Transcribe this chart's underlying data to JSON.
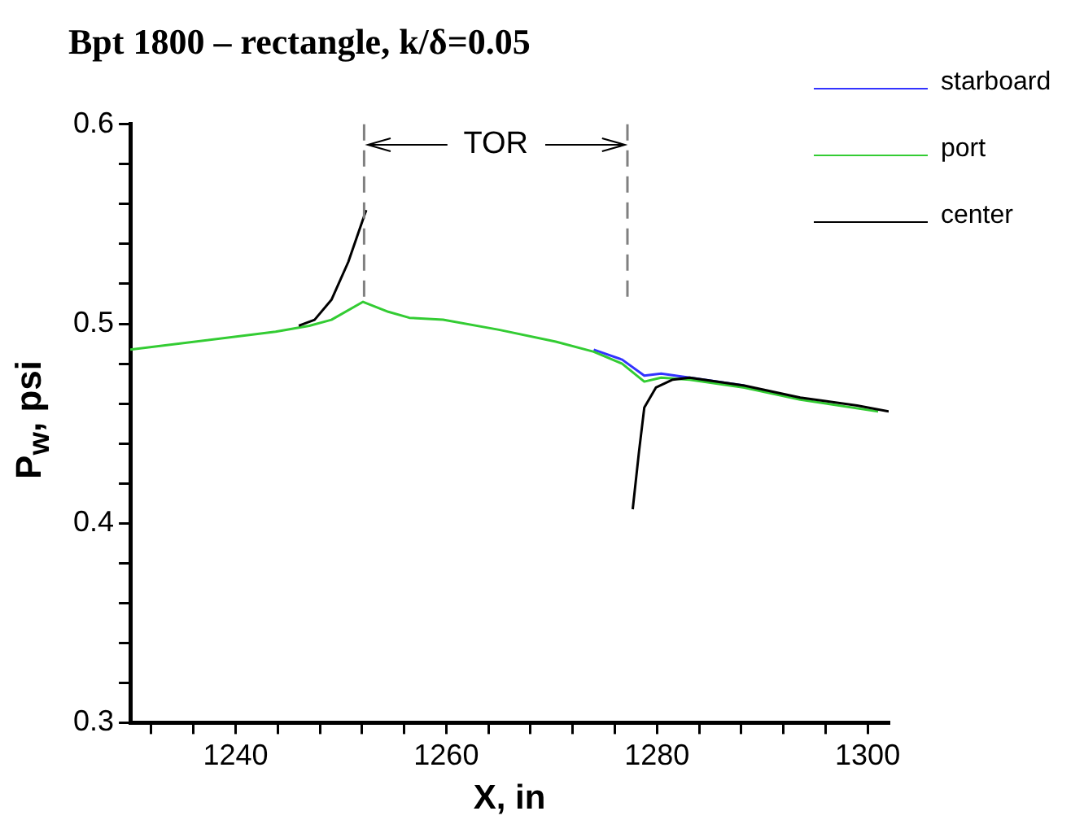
{
  "chart_data": {
    "type": "line",
    "title": "Bpt 1800 – rectangle, k/δ=0.05",
    "xlabel": "X, in",
    "ylabel": "P$_{w}$, psi",
    "xlim": [
      1230,
      1302
    ],
    "xticks": [
      {
        "value": 1232,
        "label": null
      },
      {
        "value": 1236,
        "label": null
      },
      1240,
      {
        "value": 1244,
        "label": null
      },
      {
        "value": 1248,
        "label": null
      },
      {
        "value": 1252,
        "label": null
      },
      {
        "value": 1256,
        "label": null
      },
      1260,
      {
        "value": 1264,
        "label": null
      },
      {
        "value": 1268,
        "label": null
      },
      {
        "value": 1272,
        "label": null
      },
      {
        "value": 1276,
        "label": null
      },
      1280,
      {
        "value": 1284,
        "label": null
      },
      {
        "value": 1288,
        "label": null
      },
      {
        "value": 1292,
        "label": null
      },
      {
        "value": 1296,
        "label": null
      },
      1300
    ],
    "ylim": [
      0.3,
      0.6
    ],
    "yticks": [
      0.3,
      {
        "value": 0.32,
        "label": null
      },
      {
        "value": 0.34,
        "label": null
      },
      {
        "value": 0.36,
        "label": null
      },
      {
        "value": 0.38,
        "label": null
      },
      0.4,
      {
        "value": 0.42,
        "label": null
      },
      {
        "value": 0.44,
        "label": null
      },
      {
        "value": 0.46,
        "label": null
      },
      {
        "value": 0.48,
        "label": null
      },
      0.5,
      {
        "value": 0.52,
        "label": null
      },
      {
        "value": 0.54,
        "label": null
      },
      {
        "value": 0.56,
        "label": null
      },
      {
        "value": 0.58,
        "label": null
      },
      0.6
    ],
    "legend": "top right",
    "series": [
      {
        "name": "starboard",
        "color": "#3333ff",
        "x": [
          1274,
          1276.7,
          1278.8,
          1280.4,
          1283.1,
          1288.3
        ],
        "values": [
          0.487,
          0.482,
          0.474,
          0.475,
          0.473,
          0.469
        ]
      },
      {
        "name": "port",
        "color": "#33cc33",
        "x": [
          1230,
          1243.8,
          1247,
          1249.1,
          1252.1,
          1254.5,
          1256.5,
          1259.7,
          1265,
          1270.4,
          1274,
          1276.7,
          1278.8,
          1280.4,
          1283.1,
          1288.3,
          1293.6,
          1301
        ],
        "values": [
          0.487,
          0.496,
          0.499,
          0.502,
          0.511,
          0.506,
          0.503,
          0.502,
          0.497,
          0.491,
          0.486,
          0.48,
          0.471,
          0.473,
          0.472,
          0.468,
          0.462,
          0.456
        ]
      },
      {
        "name": "center",
        "color": "#000000",
        "x": [
          1246,
          1247.5,
          1249.1,
          1250.7,
          1252.4,
          1265,
          1277.7,
          1278.3,
          1278.8,
          1279.9,
          1281.5,
          1283.1,
          1288.3,
          1293.6,
          1299,
          1302
        ],
        "values": [
          0.499,
          0.502,
          0.512,
          0.531,
          0.557,
          null,
          0.407,
          0.436,
          0.458,
          0.468,
          0.472,
          0.473,
          0.469,
          0.463,
          0.459,
          0.456
        ]
      }
    ],
    "ref_lines": [
      {
        "axis": "x",
        "value": 1252.2,
        "color": "#808080",
        "line_style": "dashed"
      },
      {
        "axis": "x",
        "value": 1277.2,
        "color": "#808080",
        "line_style": "dashed"
      }
    ],
    "annotations": [
      {
        "text": "TOR",
        "x": 1277.2,
        "y": 0.59
      }
    ]
  }
}
